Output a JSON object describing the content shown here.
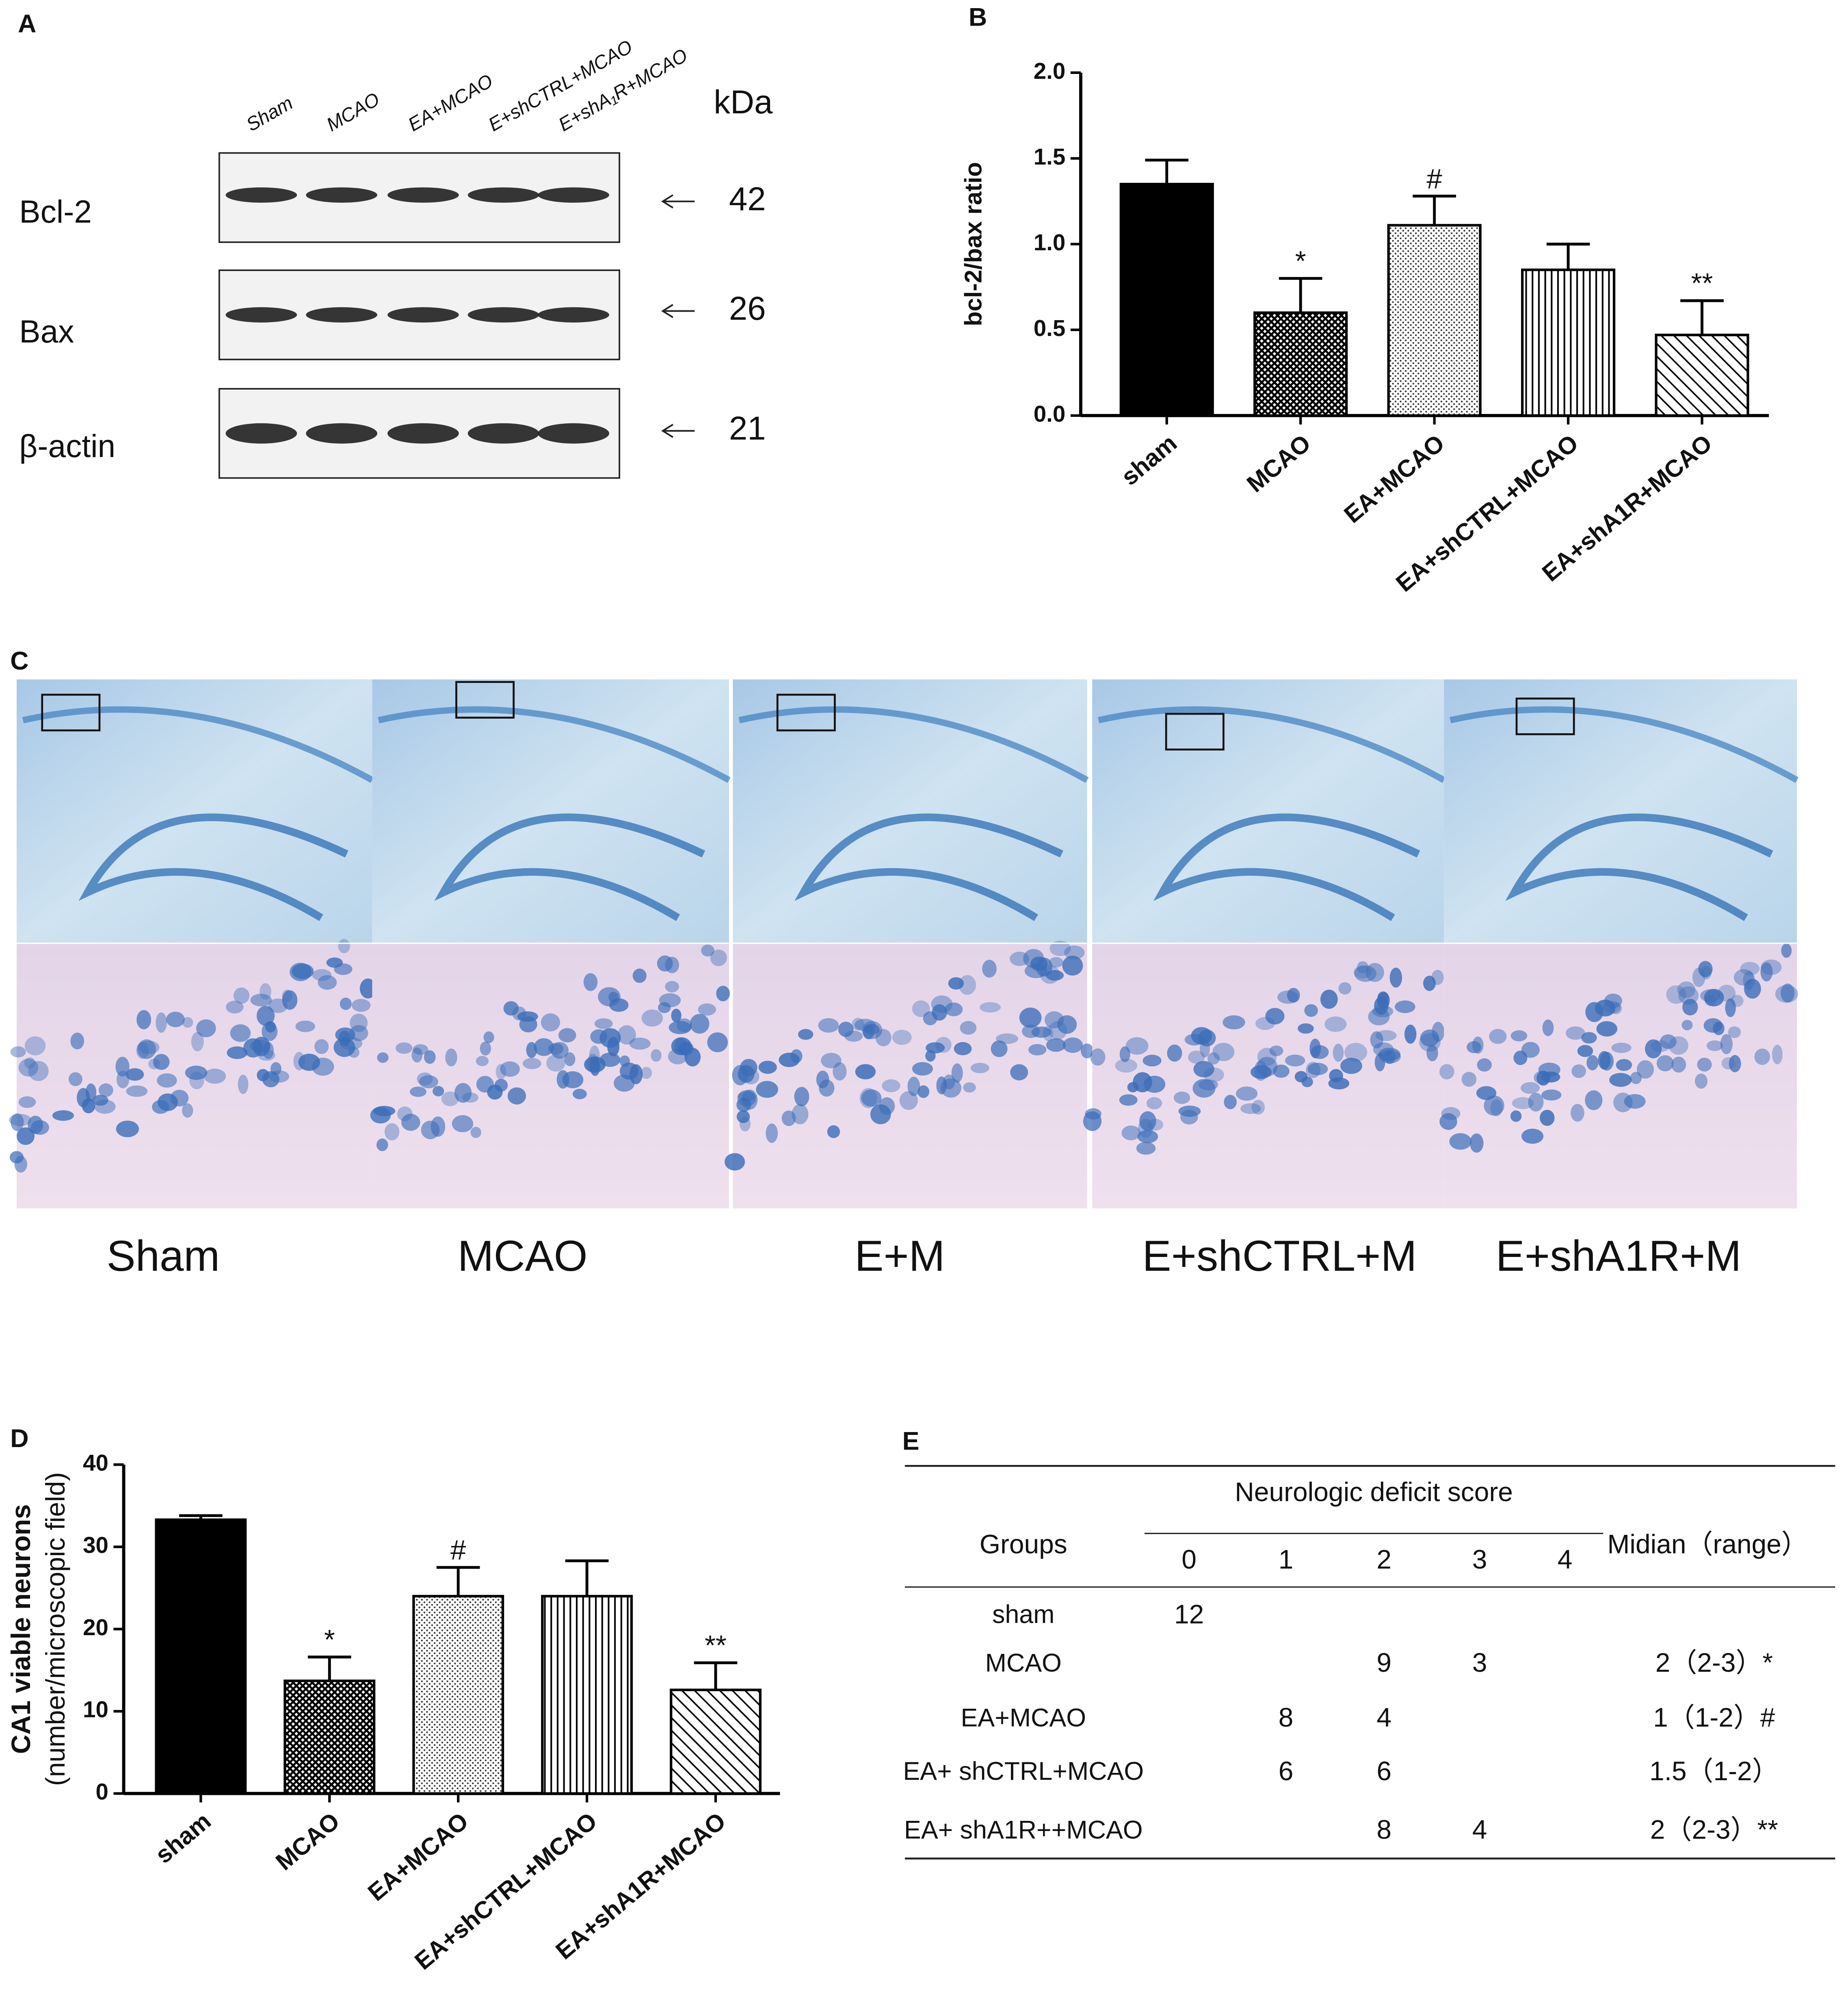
{
  "western_blot": {
    "label": "A",
    "lanes": [
      "Sham",
      "MCAO",
      "EA+MCAO",
      "E+shCTRL+MCAO",
      "E+shA₁R+MCAO"
    ],
    "unit": "kDa",
    "rows": [
      {
        "name": "Bcl-2",
        "kda": 42
      },
      {
        "name": "Bax",
        "kda": 26
      },
      {
        "name": "β-actin",
        "kda": 21
      }
    ]
  },
  "chart_data": [
    {
      "type": "bar",
      "label": "B",
      "ylabel": "bcl-2/bax ratio",
      "categories": [
        "sham",
        "MCAO",
        "EA+MCAO",
        "EA+shCTRL+MCAO",
        "EA+shA1R+MCAO"
      ],
      "values": [
        1.35,
        0.6,
        1.11,
        0.85,
        0.47
      ],
      "errors": [
        0.14,
        0.2,
        0.17,
        0.15,
        0.2
      ],
      "annotations": [
        null,
        "*",
        "#",
        null,
        "**"
      ],
      "fill_patterns": [
        "solid",
        "crosshatch",
        "dots",
        "vertical",
        "diagonal"
      ],
      "color": "#000000",
      "ylim": [
        0,
        2
      ],
      "yticks": [
        {
          "value": 0,
          "label": "0.0"
        },
        {
          "value": 0.5,
          "label": "0.5"
        },
        {
          "value": 1,
          "label": "1.0"
        },
        {
          "value": 1.5,
          "label": "1.5"
        },
        {
          "value": 2,
          "label": "2.0"
        }
      ]
    },
    {
      "type": "bar",
      "label": "D",
      "ylabel": [
        "CA1 viable neurons",
        "(number/microscopic field)"
      ],
      "categories": [
        "sham",
        "MCAO",
        "EA+MCAO",
        "EA+shCTRL+MCAO",
        "EA+shA1R+MCAO"
      ],
      "values": [
        33.3,
        13.7,
        24,
        24,
        12.6
      ],
      "errors": [
        0.5,
        2.9,
        3.5,
        4.3,
        3.3
      ],
      "annotations": [
        null,
        "*",
        "#",
        null,
        "**"
      ],
      "fill_patterns": [
        "solid",
        "crosshatch",
        "dots",
        "vertical",
        "diagonal"
      ],
      "color": "#000000",
      "ylim": [
        0,
        40
      ],
      "yticks": [
        0,
        10,
        20,
        30,
        40
      ]
    }
  ],
  "histology": {
    "label": "C",
    "groups": [
      "Sham",
      "MCAO",
      "E+M",
      "E+shCTRL+M",
      "E+shA1R+M"
    ]
  },
  "table": {
    "label": "E",
    "title": "Neurologic deficit score",
    "group_header": "Groups",
    "scores": [
      0,
      1,
      2,
      3,
      4
    ],
    "median_header": "Midian（range）",
    "rows": [
      {
        "group": "sham",
        "counts": [
          12,
          null,
          null,
          null,
          null
        ],
        "median": null
      },
      {
        "group": "MCAO",
        "counts": [
          null,
          null,
          9,
          3,
          null
        ],
        "median": "2（2-3）*"
      },
      {
        "group": "EA+MCAO",
        "counts": [
          null,
          8,
          4,
          null,
          null
        ],
        "median": "1（1-2）#"
      },
      {
        "group": "EA+ shCTRL+MCAO",
        "counts": [
          null,
          6,
          6,
          null,
          null
        ],
        "median": "1.5（1-2）"
      },
      {
        "group": "EA+ shA1R++MCAO",
        "counts": [
          null,
          null,
          8,
          4,
          null
        ],
        "median": "2（2-3）**"
      }
    ]
  }
}
